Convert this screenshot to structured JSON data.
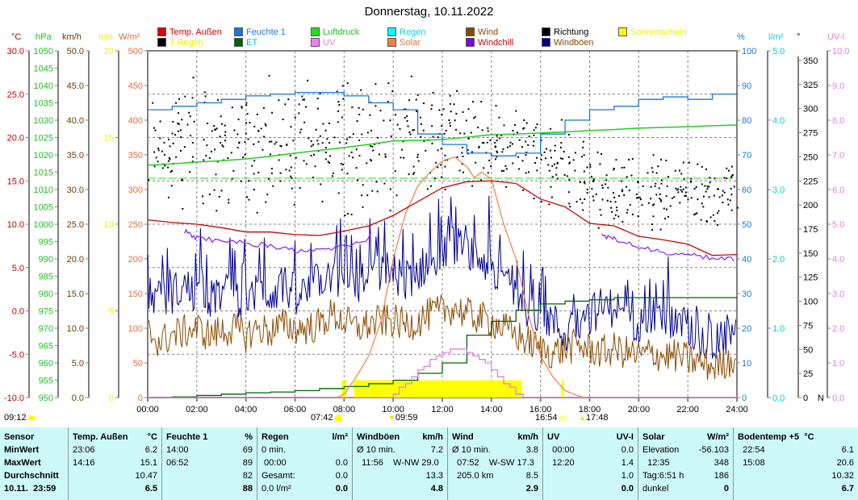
{
  "title": "Donnerstag, 10.11.2022",
  "colors": {
    "temp": "#d00000",
    "humidity": "#1878e0",
    "pressure": "#20d020",
    "rain": "#00e0e0",
    "wind": "#8b4a00",
    "direction": "#000000",
    "sunshine": "#ffff00",
    "rain_temp": "#000000",
    "et": "#006400",
    "uv": "#e080e0",
    "solar": "#f08040",
    "windchill": "#8020ff",
    "gusts": "#000090",
    "grid": "#808080",
    "table_bg": "#ccf8f8"
  },
  "legend": [
    {
      "label": "Temp. Außen",
      "swatch": "#e00000",
      "text_color": "#d00000"
    },
    {
      "label": "Feuchte 1",
      "swatch": "#1878e0",
      "text_color": "#1878e0"
    },
    {
      "label": "Luftdruck",
      "swatch": "#20e020",
      "text_color": "#20c020"
    },
    {
      "label": "Regen",
      "swatch": "#00ffff",
      "text_color": "#00d8d8"
    },
    {
      "label": "Wind",
      "swatch": "#8b4a00",
      "text_color": "#8b4a00"
    },
    {
      "label": "Richtung",
      "swatch": "#000000",
      "text_color": "#000000"
    },
    {
      "label": "Sonnenschein",
      "swatch": "#ffff00",
      "text_color": "#f0f000"
    },
    {
      "label": "T Regen",
      "swatch": "#000000",
      "text_color": "#f0f000"
    },
    {
      "label": "ET",
      "swatch": "#006400",
      "text_color": "#00c0c0"
    },
    {
      "label": "UV",
      "swatch": "#f080f0",
      "text_color": "#e080e0"
    },
    {
      "label": "Solar",
      "swatch": "#f08040",
      "text_color": "#e07040"
    },
    {
      "label": "Windchill",
      "swatch": "#8000e0",
      "text_color": "#d00000"
    },
    {
      "label": "Windböen",
      "swatch": "#000090",
      "text_color": "#8b4a00"
    }
  ],
  "axes": {
    "left": [
      {
        "unit": "°C",
        "min": -10,
        "max": 30,
        "step": 5,
        "decimals": 1,
        "color": "#c00000"
      },
      {
        "unit": "hPa",
        "min": 950,
        "max": 1050,
        "step": 5,
        "decimals": 0,
        "color": "#20c020"
      },
      {
        "unit": "km/h",
        "min": 0,
        "max": 50,
        "step": 5,
        "decimals": 1,
        "color": "#6b3a00"
      },
      {
        "unit": "min",
        "min": 0,
        "max": 20,
        "step": 5,
        "decimals": 0,
        "color": "#f0f000"
      },
      {
        "unit": "W/m²",
        "min": 0,
        "max": 500,
        "step": 50,
        "decimals": 0,
        "color": "#e07040"
      }
    ],
    "right": [
      {
        "unit": "%",
        "min": 0,
        "max": 100,
        "step": 10,
        "decimals": 0,
        "color": "#1878e0"
      },
      {
        "unit": "l/m²",
        "min": 0,
        "max": 5,
        "step": 1,
        "decimals": 1,
        "color": "#00d0d0"
      },
      {
        "unit": "°",
        "min": 0,
        "max": 360,
        "step": 25,
        "label_max": 350,
        "decimals": 0,
        "color": "#000000",
        "zero_suffix": "N"
      },
      {
        "unit": "UV-I",
        "min": 0,
        "max": 10,
        "step": 1,
        "decimals": 1,
        "color": "#e080e0"
      }
    ],
    "x_ticks": [
      "00:00",
      "02:00",
      "04:00",
      "06:00",
      "08:00",
      "10:00",
      "12:00",
      "14:00",
      "16:00",
      "18:00",
      "20:00",
      "22:00",
      "24:00"
    ]
  },
  "chart_data": {
    "type": "line",
    "title": "Donnerstag, 10.11.2022",
    "x_unit": "hour",
    "xlim": [
      0,
      24
    ],
    "grid": true,
    "pressure_reference_hpa": 1013.25,
    "hourly_x": [
      0,
      1,
      2,
      3,
      4,
      5,
      6,
      7,
      8,
      9,
      10,
      11,
      12,
      13,
      14,
      15,
      16,
      17,
      18,
      19,
      20,
      21,
      22,
      23,
      24
    ],
    "series": [
      {
        "name": "Temp. Außen",
        "axis": "°C",
        "values": [
          10.5,
          10.2,
          10.0,
          9.6,
          9.1,
          9.1,
          8.8,
          8.7,
          9.2,
          9.8,
          11.0,
          12.6,
          14.2,
          14.9,
          15.0,
          14.7,
          12.9,
          12.0,
          10.1,
          9.8,
          8.6,
          8.2,
          7.7,
          6.4,
          6.5
        ]
      },
      {
        "name": "Feuchte 1",
        "axis": "%",
        "values": [
          83,
          84,
          85,
          86,
          87,
          87.5,
          88,
          88,
          87,
          85,
          83,
          76,
          73,
          70.5,
          69.7,
          70.5,
          76,
          80,
          83,
          84,
          86,
          86.7,
          86,
          87.5,
          88
        ]
      },
      {
        "name": "Luftdruck",
        "axis": "hPa",
        "values": [
          1017.0,
          1017.4,
          1017.9,
          1018.3,
          1018.8,
          1019.6,
          1020.5,
          1021.3,
          1022.1,
          1023.0,
          1024.0,
          1024.2,
          1024.4,
          1025.1,
          1025.8,
          1026.0,
          1026.3,
          1026.6,
          1027.0,
          1027.3,
          1027.7,
          1027.9,
          1028.1,
          1028.4,
          1028.6
        ]
      },
      {
        "name": "ET",
        "axis": "l/m²",
        "step": true,
        "values": [
          0,
          0.01,
          0.03,
          0.05,
          0.07,
          0.08,
          0.1,
          0.13,
          0.16,
          0.2,
          0.25,
          0.35,
          0.5,
          0.9,
          1.1,
          1.26,
          1.35,
          1.39,
          1.41,
          1.44,
          1.44,
          1.44,
          1.44,
          1.44,
          1.44
        ]
      }
    ],
    "windchill": {
      "axis": "°C",
      "segments": [
        {
          "x": [
            1.5,
            2,
            3,
            4,
            5,
            6,
            7,
            8,
            9,
            9.1
          ],
          "values": [
            9.5,
            8.7,
            8.4,
            8.1,
            7.8,
            7.3,
            7.2,
            7.8,
            8.6,
            9.4
          ]
        },
        {
          "x": [
            18.5,
            19,
            20,
            21,
            22,
            23,
            24
          ],
          "values": [
            9.0,
            8.6,
            7.7,
            7.0,
            6.7,
            6.4,
            6.3
          ]
        }
      ]
    },
    "solar": {
      "axis": "W/m²",
      "x": [
        7.7,
        8,
        8.5,
        9,
        9.5,
        10,
        10.5,
        11,
        11.5,
        12,
        12.5,
        13,
        13.3,
        13.6,
        14,
        14.5,
        15,
        15.5,
        16,
        16.5,
        17,
        17.5,
        17.8
      ],
      "values": [
        0,
        5,
        30,
        60,
        110,
        200,
        265,
        305,
        325,
        341,
        347,
        333,
        317,
        325,
        315,
        250,
        200,
        120,
        60,
        30,
        10,
        3,
        0
      ]
    },
    "uv": {
      "axis": "UV-I",
      "step": true,
      "x": [
        0,
        9.8,
        10,
        10.25,
        10.5,
        10.75,
        11,
        11.25,
        11.5,
        11.75,
        12,
        12.33,
        13,
        13.25,
        13.5,
        13.75,
        14,
        14.25,
        14.5,
        14.75,
        15,
        15.3,
        24
      ],
      "values": [
        0,
        0,
        0.1,
        0.3,
        0.4,
        0.6,
        0.8,
        0.9,
        1.1,
        1.2,
        1.3,
        1.4,
        1.3,
        1.2,
        1.1,
        1.0,
        0.8,
        0.6,
        0.4,
        0.3,
        0.1,
        0,
        0
      ]
    },
    "sunshine": {
      "axis": "min",
      "intervals": [
        [
          7.9,
          8.1
        ],
        [
          8.4,
          15.25
        ],
        [
          16.85,
          16.95
        ]
      ],
      "value": 1
    },
    "wind_x_step": 0.5,
    "wind": {
      "name": "Wind",
      "axis": "km/h",
      "values": [
        9.5,
        8,
        9,
        9.5,
        10,
        9,
        9.5,
        10,
        9,
        10,
        9.5,
        10.5,
        10,
        10,
        10.5,
        12,
        11,
        10,
        10.5,
        11,
        11,
        10.5,
        11,
        12,
        12.5,
        13,
        12,
        11.5,
        11,
        10,
        9,
        8,
        7,
        6.5,
        7,
        7.5,
        7,
        6.5,
        7,
        6.5,
        6,
        6.5,
        6,
        6,
        5.5,
        5,
        4.5,
        5,
        6
      ]
    },
    "gusts": {
      "name": "Windböen",
      "axis": "km/h",
      "values": [
        15,
        14,
        15,
        16,
        15,
        14,
        15,
        15,
        14,
        15,
        15,
        16,
        15,
        15,
        17,
        18,
        16,
        16,
        17,
        18,
        18,
        17,
        18,
        20,
        21,
        22,
        21,
        20,
        19,
        17,
        15,
        13,
        12,
        11,
        9,
        11,
        12,
        13,
        13,
        11,
        11,
        12,
        11,
        11,
        10,
        8,
        8,
        9,
        10
      ]
    },
    "direction": {
      "name": "Richtung",
      "axis": "°",
      "type": "scatter",
      "hourly_min": [
        190,
        185,
        190,
        195,
        190,
        195,
        200,
        195,
        190,
        195,
        200,
        210,
        215,
        220,
        215,
        205,
        200,
        190,
        175,
        175,
        175,
        180,
        180,
        180
      ],
      "hourly_max": [
        330,
        345,
        335,
        330,
        335,
        325,
        330,
        340,
        345,
        335,
        340,
        330,
        325,
        320,
        310,
        300,
        290,
        280,
        260,
        255,
        255,
        250,
        250,
        245
      ]
    }
  },
  "markers": [
    {
      "time": "09:12",
      "icon": "moon-icon",
      "color": "#ffff00"
    },
    {
      "time": "07:42",
      "icon": "sunrise-icon",
      "color": "#ffff00"
    },
    {
      "time": "09:59",
      "icon": "moonset-arrow-icon",
      "color": "#f0e000"
    },
    {
      "time": "16:54",
      "icon": "sunset-icon",
      "color": "#ffff90"
    },
    {
      "time": "17:48",
      "icon": "moonrise-arrow-icon",
      "color": "#f0e000"
    }
  ],
  "table": {
    "columns": [
      {
        "header": [
          "Sensor",
          ""
        ],
        "rows": [
          [
            "MinWert",
            ""
          ],
          [
            "MaxWert",
            ""
          ],
          [
            "Durchschnitt",
            ""
          ],
          [
            "10.11.  23:59",
            ""
          ]
        ],
        "label_col": true
      },
      {
        "header": [
          "Temp. Außen",
          "°C"
        ],
        "rows": [
          [
            "23:06",
            "6.2"
          ],
          [
            "14:16",
            "15.1"
          ],
          [
            "",
            "10.47"
          ],
          [
            "",
            "6.5"
          ]
        ]
      },
      {
        "header": [
          "Feuchte 1",
          "%"
        ],
        "rows": [
          [
            "14:00",
            "69"
          ],
          [
            "06:52",
            "89"
          ],
          [
            "",
            "82"
          ],
          [
            "",
            "88"
          ]
        ]
      },
      {
        "header": [
          "Regen",
          "l/m²"
        ],
        "rows": [
          [
            "0 min.",
            ""
          ],
          [
            " 00:00",
            "0.0"
          ],
          [
            "Gesamt:",
            "0.0"
          ],
          [
            "0.0 l/m²",
            "0.0"
          ]
        ]
      },
      {
        "header": [
          "Windböen",
          "km/h"
        ],
        "rows": [
          [
            "Ø 10 min.",
            "7.2"
          ],
          [
            "  11:56    W-NW 29.0",
            ""
          ],
          [
            "",
            "13.3"
          ],
          [
            "",
            "4.8"
          ]
        ]
      },
      {
        "header": [
          "Wind",
          "km/h"
        ],
        "rows": [
          [
            "Ø 10 min.",
            "3.8"
          ],
          [
            "  07:52    W-SW 17.3",
            ""
          ],
          [
            "  205.0 km",
            "8.5"
          ],
          [
            "",
            "2.9"
          ]
        ]
      },
      {
        "header": [
          "UV",
          "UV-I"
        ],
        "rows": [
          [
            "  00:00",
            "0.0"
          ],
          [
            "  12:20",
            "1.4"
          ],
          [
            "",
            "1.0"
          ],
          [
            "",
            "0.0"
          ]
        ]
      },
      {
        "header": [
          "Solar",
          "W/m²"
        ],
        "rows": [
          [
            "Elevation",
            "-56.103"
          ],
          [
            "  12:35",
            "348"
          ],
          [
            "Tag:6:51 h",
            "186"
          ],
          [
            "dunkel",
            "0"
          ]
        ]
      },
      {
        "header": [
          "Bodentemp +5  °C",
          ""
        ],
        "rows": [
          [
            "  22:54",
            "6.1"
          ],
          [
            "  15:08",
            "20.6"
          ],
          [
            "",
            "10.32"
          ],
          [
            "",
            "6.7"
          ]
        ]
      }
    ]
  }
}
